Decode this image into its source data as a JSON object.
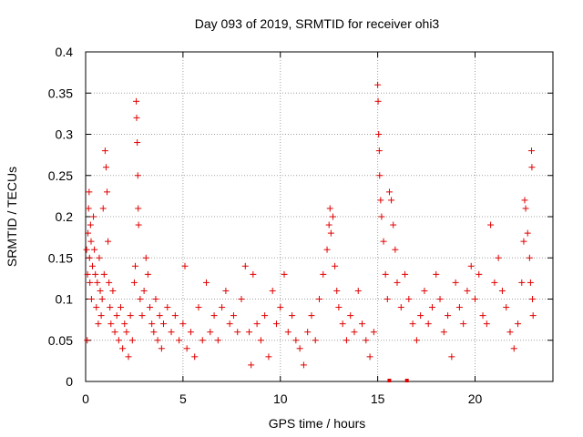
{
  "chart_data": {
    "type": "scatter",
    "title": "Day 093 of 2019, SRMTID for receiver ohi3",
    "xlabel": "GPS time / hours",
    "ylabel": "SRMTID / TECUs",
    "xlim": [
      0,
      24
    ],
    "ylim": [
      0,
      0.4
    ],
    "xticks": [
      0,
      5,
      10,
      15,
      20
    ],
    "xtick_labels": [
      "0",
      "5",
      "10",
      "15",
      "20"
    ],
    "yticks": [
      0,
      0.05,
      0.1,
      0.15,
      0.2,
      0.25,
      0.3,
      0.35,
      0.4
    ],
    "ytick_labels": [
      "0",
      "0.05",
      "0.1",
      "0.15",
      "0.2",
      "0.25",
      "0.3",
      "0.35",
      "0.4"
    ],
    "grid": true,
    "marker": "plus",
    "color": "#e00000",
    "series": [
      {
        "name": "ohi3",
        "points": [
          [
            0.05,
            0.16
          ],
          [
            0.08,
            0.05
          ],
          [
            0.1,
            0.13
          ],
          [
            0.12,
            0.18
          ],
          [
            0.15,
            0.21
          ],
          [
            0.18,
            0.23
          ],
          [
            0.2,
            0.15
          ],
          [
            0.22,
            0.12
          ],
          [
            0.25,
            0.19
          ],
          [
            0.28,
            0.17
          ],
          [
            0.3,
            0.1
          ],
          [
            0.35,
            0.14
          ],
          [
            0.4,
            0.2
          ],
          [
            0.45,
            0.16
          ],
          [
            0.5,
            0.13
          ],
          [
            0.55,
            0.09
          ],
          [
            0.6,
            0.12
          ],
          [
            0.65,
            0.07
          ],
          [
            0.7,
            0.15
          ],
          [
            0.75,
            0.11
          ],
          [
            0.8,
            0.08
          ],
          [
            0.85,
            0.1
          ],
          [
            0.9,
            0.21
          ],
          [
            0.95,
            0.13
          ],
          [
            1.0,
            0.28
          ],
          [
            1.05,
            0.26
          ],
          [
            1.1,
            0.23
          ],
          [
            1.15,
            0.17
          ],
          [
            1.2,
            0.12
          ],
          [
            1.25,
            0.09
          ],
          [
            1.3,
            0.07
          ],
          [
            1.4,
            0.11
          ],
          [
            1.5,
            0.06
          ],
          [
            1.6,
            0.08
          ],
          [
            1.7,
            0.05
          ],
          [
            1.8,
            0.09
          ],
          [
            1.9,
            0.04
          ],
          [
            2.0,
            0.07
          ],
          [
            2.1,
            0.06
          ],
          [
            2.2,
            0.03
          ],
          [
            2.3,
            0.08
          ],
          [
            2.4,
            0.05
          ],
          [
            2.5,
            0.12
          ],
          [
            2.55,
            0.14
          ],
          [
            2.6,
            0.34
          ],
          [
            2.62,
            0.32
          ],
          [
            2.65,
            0.29
          ],
          [
            2.68,
            0.25
          ],
          [
            2.7,
            0.21
          ],
          [
            2.72,
            0.19
          ],
          [
            2.8,
            0.1
          ],
          [
            2.9,
            0.08
          ],
          [
            3.0,
            0.11
          ],
          [
            3.1,
            0.15
          ],
          [
            3.2,
            0.13
          ],
          [
            3.3,
            0.09
          ],
          [
            3.4,
            0.07
          ],
          [
            3.5,
            0.06
          ],
          [
            3.6,
            0.1
          ],
          [
            3.7,
            0.05
          ],
          [
            3.8,
            0.08
          ],
          [
            3.9,
            0.04
          ],
          [
            4.0,
            0.07
          ],
          [
            4.2,
            0.09
          ],
          [
            4.4,
            0.06
          ],
          [
            4.6,
            0.08
          ],
          [
            4.8,
            0.05
          ],
          [
            5.0,
            0.07
          ],
          [
            5.1,
            0.14
          ],
          [
            5.2,
            0.04
          ],
          [
            5.4,
            0.06
          ],
          [
            5.6,
            0.03
          ],
          [
            5.8,
            0.09
          ],
          [
            6.0,
            0.05
          ],
          [
            6.2,
            0.12
          ],
          [
            6.4,
            0.06
          ],
          [
            6.6,
            0.08
          ],
          [
            6.8,
            0.05
          ],
          [
            7.0,
            0.09
          ],
          [
            7.2,
            0.11
          ],
          [
            7.4,
            0.07
          ],
          [
            7.6,
            0.08
          ],
          [
            7.8,
            0.06
          ],
          [
            8.0,
            0.1
          ],
          [
            8.2,
            0.14
          ],
          [
            8.4,
            0.06
          ],
          [
            8.5,
            0.02
          ],
          [
            8.6,
            0.13
          ],
          [
            8.8,
            0.07
          ],
          [
            9.0,
            0.05
          ],
          [
            9.2,
            0.08
          ],
          [
            9.4,
            0.03
          ],
          [
            9.6,
            0.11
          ],
          [
            9.8,
            0.07
          ],
          [
            10.0,
            0.09
          ],
          [
            10.2,
            0.13
          ],
          [
            10.4,
            0.06
          ],
          [
            10.6,
            0.08
          ],
          [
            10.8,
            0.05
          ],
          [
            11.0,
            0.04
          ],
          [
            11.2,
            0.02
          ],
          [
            11.4,
            0.06
          ],
          [
            11.6,
            0.08
          ],
          [
            11.8,
            0.05
          ],
          [
            12.0,
            0.1
          ],
          [
            12.2,
            0.13
          ],
          [
            12.4,
            0.16
          ],
          [
            12.5,
            0.19
          ],
          [
            12.55,
            0.21
          ],
          [
            12.6,
            0.18
          ],
          [
            12.7,
            0.2
          ],
          [
            12.8,
            0.14
          ],
          [
            12.9,
            0.11
          ],
          [
            13.0,
            0.09
          ],
          [
            13.2,
            0.07
          ],
          [
            13.4,
            0.05
          ],
          [
            13.6,
            0.08
          ],
          [
            13.8,
            0.06
          ],
          [
            14.0,
            0.11
          ],
          [
            14.2,
            0.07
          ],
          [
            14.4,
            0.05
          ],
          [
            14.6,
            0.03
          ],
          [
            14.8,
            0.06
          ],
          [
            15.0,
            0.36
          ],
          [
            15.02,
            0.34
          ],
          [
            15.05,
            0.3
          ],
          [
            15.08,
            0.28
          ],
          [
            15.1,
            0.25
          ],
          [
            15.15,
            0.22
          ],
          [
            15.2,
            0.2
          ],
          [
            15.3,
            0.17
          ],
          [
            15.4,
            0.13
          ],
          [
            15.5,
            0.1
          ],
          [
            15.6,
            0.23
          ],
          [
            15.7,
            0.22
          ],
          [
            15.8,
            0.19
          ],
          [
            15.9,
            0.16
          ],
          [
            16.0,
            0.12
          ],
          [
            16.2,
            0.09
          ],
          [
            16.4,
            0.13
          ],
          [
            16.6,
            0.1
          ],
          [
            16.8,
            0.07
          ],
          [
            17.0,
            0.05
          ],
          [
            17.2,
            0.08
          ],
          [
            17.4,
            0.11
          ],
          [
            17.6,
            0.07
          ],
          [
            17.8,
            0.09
          ],
          [
            18.0,
            0.13
          ],
          [
            18.2,
            0.1
          ],
          [
            18.4,
            0.06
          ],
          [
            18.6,
            0.08
          ],
          [
            18.8,
            0.03
          ],
          [
            19.0,
            0.12
          ],
          [
            19.2,
            0.09
          ],
          [
            19.4,
            0.07
          ],
          [
            19.6,
            0.11
          ],
          [
            19.8,
            0.14
          ],
          [
            20.0,
            0.1
          ],
          [
            20.2,
            0.13
          ],
          [
            20.4,
            0.08
          ],
          [
            20.6,
            0.07
          ],
          [
            20.8,
            0.19
          ],
          [
            21.0,
            0.12
          ],
          [
            21.2,
            0.15
          ],
          [
            21.4,
            0.11
          ],
          [
            21.6,
            0.09
          ],
          [
            21.8,
            0.06
          ],
          [
            22.0,
            0.04
          ],
          [
            22.2,
            0.07
          ],
          [
            22.4,
            0.12
          ],
          [
            22.5,
            0.17
          ],
          [
            22.55,
            0.22
          ],
          [
            22.6,
            0.21
          ],
          [
            22.7,
            0.18
          ],
          [
            22.8,
            0.15
          ],
          [
            22.85,
            0.12
          ],
          [
            22.9,
            0.28
          ],
          [
            22.92,
            0.26
          ],
          [
            22.95,
            0.1
          ],
          [
            22.98,
            0.08
          ]
        ]
      }
    ],
    "zero_points": [
      15.6,
      16.5
    ]
  }
}
